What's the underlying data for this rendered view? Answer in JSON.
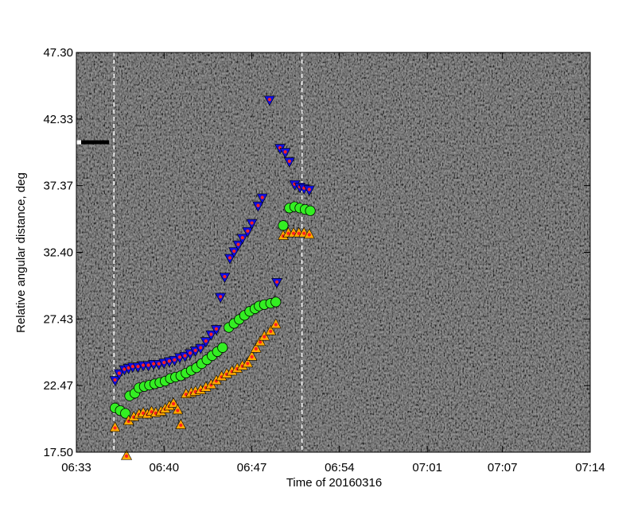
{
  "chart_data": {
    "type": "scatter",
    "title": "",
    "xlabel": "Time of 20160316",
    "ylabel": "Relative angular distance, deg",
    "x_unit": "time (HH:MM)",
    "xlim": [
      "06:33",
      "07:14"
    ],
    "ylim": [
      17.5,
      47.3
    ],
    "xticks": [
      "06:33",
      "06:40",
      "06:47",
      "06:54",
      "07:01",
      "07:07",
      "07:14"
    ],
    "yticks": [
      "17.50",
      "22.47",
      "27.43",
      "32.40",
      "37.37",
      "42.33",
      "47.30"
    ],
    "background": "grayscale running-difference image",
    "vertical_markers": [
      "06:36",
      "06:51"
    ],
    "colors": {
      "upper_fill": "#1010e0",
      "upper_center": "#ff2020",
      "mid_fill": "#33ee22",
      "lower_fill": "#ffaa00",
      "lower_center": "#ff2020",
      "marker_line": "#ffffff"
    },
    "series": [
      {
        "marker": "triangle-down",
        "points": [
          [
            "06:36:05",
            22.8
          ],
          [
            "06:36:25",
            23.3
          ],
          [
            "06:36:50",
            23.6
          ],
          [
            "06:37:10",
            23.7
          ],
          [
            "06:37:30",
            23.8
          ],
          [
            "06:37:55",
            23.8
          ],
          [
            "06:38:20",
            23.9
          ],
          [
            "06:38:45",
            23.9
          ],
          [
            "06:39:10",
            24.0
          ],
          [
            "06:39:35",
            24.0
          ],
          [
            "06:40:00",
            24.1
          ],
          [
            "06:40:25",
            24.2
          ],
          [
            "06:40:50",
            24.3
          ],
          [
            "06:41:15",
            24.5
          ],
          [
            "06:41:40",
            24.6
          ],
          [
            "06:42:05",
            24.8
          ],
          [
            "06:42:30",
            25.0
          ],
          [
            "06:42:55",
            25.2
          ],
          [
            "06:43:20",
            25.7
          ],
          [
            "06:43:45",
            26.2
          ],
          [
            "06:44:10",
            26.6
          ],
          [
            "06:44:30",
            29.0
          ],
          [
            "06:44:50",
            30.5
          ],
          [
            "06:45:15",
            31.9
          ],
          [
            "06:45:35",
            32.4
          ],
          [
            "06:45:55",
            32.9
          ],
          [
            "06:46:15",
            33.4
          ],
          [
            "06:46:40",
            33.9
          ],
          [
            "06:47:00",
            34.5
          ],
          [
            "06:47:30",
            35.8
          ],
          [
            "06:47:50",
            36.4
          ],
          [
            "06:48:25",
            43.7
          ],
          [
            "06:49:00",
            30.1
          ],
          [
            "06:49:15",
            40.1
          ],
          [
            "06:49:40",
            39.8
          ],
          [
            "06:50:00",
            39.1
          ],
          [
            "06:50:25",
            37.4
          ],
          [
            "06:50:50",
            37.2
          ],
          [
            "06:51:10",
            37.1
          ],
          [
            "06:51:35",
            37.0
          ]
        ]
      },
      {
        "marker": "circle",
        "points": [
          [
            "06:36:05",
            20.8
          ],
          [
            "06:36:30",
            20.6
          ],
          [
            "06:36:55",
            20.4
          ],
          [
            "06:37:15",
            21.7
          ],
          [
            "06:37:40",
            21.9
          ],
          [
            "06:38:00",
            22.3
          ],
          [
            "06:38:25",
            22.4
          ],
          [
            "06:38:50",
            22.5
          ],
          [
            "06:39:15",
            22.6
          ],
          [
            "06:39:40",
            22.7
          ],
          [
            "06:40:05",
            22.8
          ],
          [
            "06:40:30",
            23.0
          ],
          [
            "06:40:55",
            23.1
          ],
          [
            "06:41:20",
            23.2
          ],
          [
            "06:41:45",
            23.4
          ],
          [
            "06:42:10",
            23.6
          ],
          [
            "06:42:35",
            23.8
          ],
          [
            "06:43:00",
            24.1
          ],
          [
            "06:43:25",
            24.4
          ],
          [
            "06:43:50",
            24.7
          ],
          [
            "06:44:15",
            25.0
          ],
          [
            "06:44:40",
            25.3
          ],
          [
            "06:45:10",
            26.8
          ],
          [
            "06:45:35",
            27.1
          ],
          [
            "06:46:00",
            27.4
          ],
          [
            "06:46:25",
            27.7
          ],
          [
            "06:46:50",
            28.0
          ],
          [
            "06:47:15",
            28.2
          ],
          [
            "06:47:35",
            28.4
          ],
          [
            "06:48:00",
            28.5
          ],
          [
            "06:48:30",
            28.6
          ],
          [
            "06:48:55",
            28.7
          ],
          [
            "06:49:30",
            34.4
          ],
          [
            "06:50:00",
            35.7
          ],
          [
            "06:50:25",
            35.8
          ],
          [
            "06:50:50",
            35.7
          ],
          [
            "06:51:15",
            35.6
          ],
          [
            "06:51:40",
            35.5
          ]
        ]
      },
      {
        "marker": "triangle-up",
        "points": [
          [
            "06:36:05",
            19.4
          ],
          [
            "06:37:10",
            19.9
          ],
          [
            "06:37:35",
            20.2
          ],
          [
            "06:38:00",
            20.4
          ],
          [
            "06:38:20",
            20.5
          ],
          [
            "06:38:40",
            20.4
          ],
          [
            "06:39:00",
            20.6
          ],
          [
            "06:39:20",
            20.5
          ],
          [
            "06:39:45",
            20.6
          ],
          [
            "06:40:05",
            20.8
          ],
          [
            "06:40:25",
            21.0
          ],
          [
            "06:40:45",
            21.2
          ],
          [
            "06:41:05",
            20.7
          ],
          [
            "06:41:20",
            19.6
          ],
          [
            "06:41:45",
            21.9
          ],
          [
            "06:42:10",
            22.0
          ],
          [
            "06:42:30",
            22.1
          ],
          [
            "06:42:55",
            22.2
          ],
          [
            "06:43:20",
            22.4
          ],
          [
            "06:43:45",
            22.6
          ],
          [
            "06:44:10",
            22.9
          ],
          [
            "06:44:35",
            23.2
          ],
          [
            "06:45:00",
            23.4
          ],
          [
            "06:45:25",
            23.6
          ],
          [
            "06:45:50",
            23.8
          ],
          [
            "06:46:15",
            24.0
          ],
          [
            "06:46:40",
            24.2
          ],
          [
            "06:47:00",
            24.7
          ],
          [
            "06:47:20",
            25.3
          ],
          [
            "06:47:40",
            25.8
          ],
          [
            "06:48:00",
            26.2
          ],
          [
            "06:48:30",
            26.6
          ],
          [
            "06:48:55",
            27.1
          ],
          [
            "06:49:30",
            33.7
          ],
          [
            "06:49:55",
            33.9
          ],
          [
            "06:50:20",
            33.9
          ],
          [
            "06:50:45",
            33.9
          ],
          [
            "06:51:10",
            33.9
          ],
          [
            "06:51:35",
            33.8
          ]
        ]
      }
    ],
    "off_plot_markers": [
      {
        "marker": "triangle-up",
        "time": "06:37:00",
        "note_value": 17.3
      }
    ]
  }
}
